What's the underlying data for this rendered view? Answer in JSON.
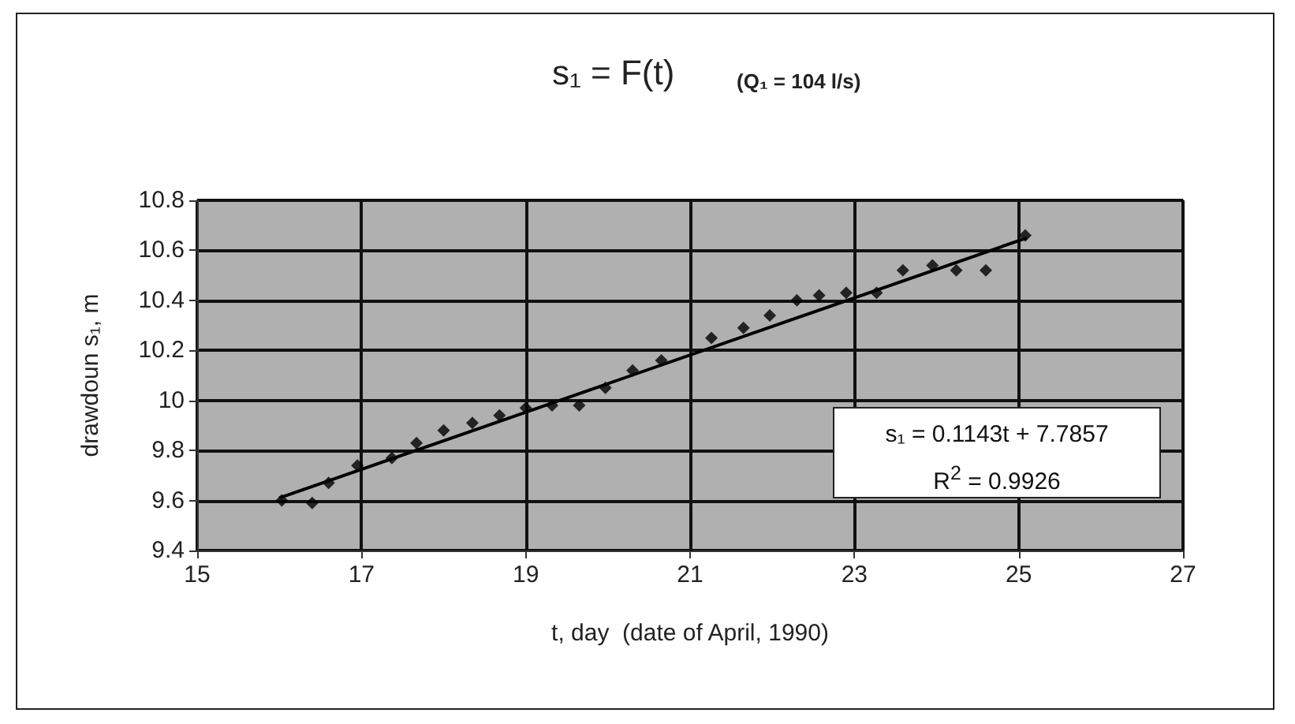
{
  "chart_data": {
    "type": "scatter",
    "title": "s₁ = F(t)",
    "subtitle": "(Q₁ = 104 l/s)",
    "xlabel": "t, day  (date of April, 1990)",
    "ylabel": "drawdoun s₁, m",
    "annotations": [
      "s₁ = 0.1143t + 7.7857",
      "R$^{2}$ = 0.9926"
    ],
    "series": [
      {
        "color": "#000000",
        "marker": "diamond",
        "x": [
          16.03,
          16.4,
          16.6,
          16.95,
          17.37,
          17.67,
          18.0,
          18.35,
          18.68,
          19.0,
          19.32,
          19.65,
          19.97,
          20.3,
          20.65,
          21.26,
          21.65,
          21.97,
          22.3,
          22.57,
          22.9,
          23.27,
          23.59,
          23.95,
          24.24,
          24.6,
          25.08
        ],
        "values": [
          9.6,
          9.59,
          9.67,
          9.74,
          9.77,
          9.83,
          9.88,
          9.91,
          9.94,
          9.97,
          9.98,
          9.98,
          10.05,
          10.12,
          10.16,
          10.25,
          10.29,
          10.34,
          10.4,
          10.42,
          10.43,
          10.43,
          10.52,
          10.54,
          10.52,
          10.52,
          10.66
        ]
      },
      {
        "type": "line",
        "color": "#000000",
        "line_style": "solid",
        "x": [
          16.0,
          25.1
        ],
        "values": [
          9.61,
          10.65
        ]
      }
    ],
    "xlim": [
      15,
      27
    ],
    "xticks": [
      15,
      17,
      19,
      21,
      23,
      25,
      27
    ],
    "ylim": [
      9.4,
      10.8
    ],
    "yticks": [
      9.4,
      9.6,
      9.8,
      10,
      10.2,
      10.4,
      10.6,
      10.8
    ],
    "grid": true
  }
}
